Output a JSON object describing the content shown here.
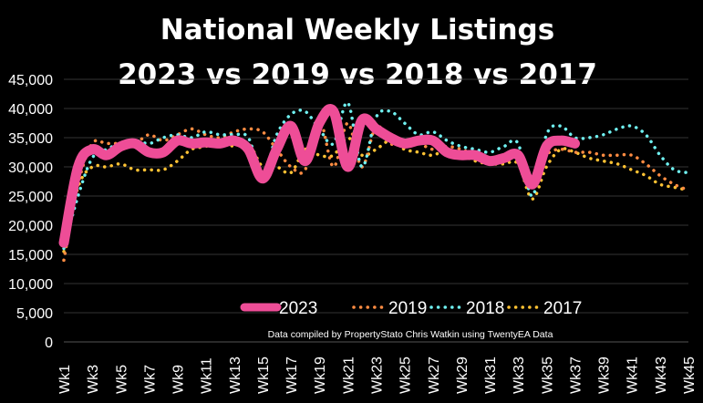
{
  "chart_data": {
    "type": "line",
    "title": [
      "National Weekly Listings",
      "2023 vs 2019 vs 2018 vs 2017"
    ],
    "source_note": "Data compiled by PropertyStato Chris Watkin using TwentyEA Data",
    "ylim": [
      0,
      45000
    ],
    "yticks": [
      "0",
      "5,000",
      "10,000",
      "15,000",
      "20,000",
      "25,000",
      "30,000",
      "35,000",
      "40,000",
      "45,000"
    ],
    "xtick_labels": [
      "Wk1",
      "Wk3",
      "Wk5",
      "Wk7",
      "Wk9",
      "Wk11",
      "Wk13",
      "Wk15",
      "Wk17",
      "Wk19",
      "Wk21",
      "Wk23",
      "Wk25",
      "Wk27",
      "Wk29",
      "Wk31",
      "Wk33",
      "Wk35",
      "Wk37",
      "Wk39",
      "Wk41",
      "Wk43",
      "Wk45"
    ],
    "num_weeks": 45,
    "grid": true,
    "legend_position": "bottom-center",
    "series": [
      {
        "name": "2023",
        "color": "#ee4d97",
        "style": "solid",
        "values": [
          17000,
          30000,
          33000,
          32000,
          33500,
          34000,
          32500,
          32500,
          34500,
          34000,
          34200,
          34000,
          34500,
          33000,
          28000,
          33000,
          37000,
          31000,
          37500,
          39500,
          30000,
          38000,
          36500,
          35000,
          34000,
          34500,
          34500,
          32500,
          32000,
          32000,
          31000,
          31500,
          32000,
          27000,
          33500,
          34500,
          34000
        ]
      },
      {
        "name": "2019",
        "color": "#ff8c42",
        "style": "dotted",
        "values": [
          14000,
          27000,
          34000,
          34000,
          34000,
          34000,
          35500,
          34500,
          35500,
          36500,
          35500,
          35000,
          36000,
          36500,
          36000,
          33000,
          30000,
          29500,
          38000,
          30000,
          37500,
          30000,
          37000,
          34000,
          34000,
          34000,
          33000,
          33500,
          33000,
          32000,
          31500,
          32000,
          32000,
          27000,
          32000,
          33000,
          32500,
          32500,
          32000,
          32000,
          32000,
          30500,
          28500,
          27000,
          26000
        ]
      },
      {
        "name": "2018",
        "color": "#6ff0f0",
        "style": "dotted",
        "values": [
          16000,
          25000,
          31500,
          33000,
          34000,
          34500,
          34000,
          35000,
          35500,
          35000,
          36000,
          35500,
          35500,
          35000,
          28500,
          35500,
          39000,
          39500,
          36500,
          34000,
          41000,
          30000,
          38500,
          39500,
          37500,
          35500,
          36000,
          34500,
          33500,
          33000,
          32500,
          33500,
          34000,
          25000,
          35500,
          37000,
          35000,
          35000,
          35500,
          36500,
          37000,
          35500,
          32000,
          29500,
          29000
        ]
      },
      {
        "name": "2017",
        "color": "#ffc233",
        "style": "dotted",
        "values": [
          15500,
          26500,
          30000,
          30000,
          30500,
          29500,
          29500,
          29500,
          31000,
          33000,
          33500,
          34500,
          33500,
          34000,
          30000,
          30000,
          29000,
          33000,
          32000,
          32000,
          35000,
          32000,
          33000,
          34500,
          33000,
          32500,
          32000,
          33000,
          32000,
          31000,
          30500,
          30500,
          30500,
          24500,
          30000,
          33000,
          32500,
          31500,
          31000,
          30500,
          29500,
          28500,
          27000,
          26500,
          26000
        ]
      }
    ]
  }
}
